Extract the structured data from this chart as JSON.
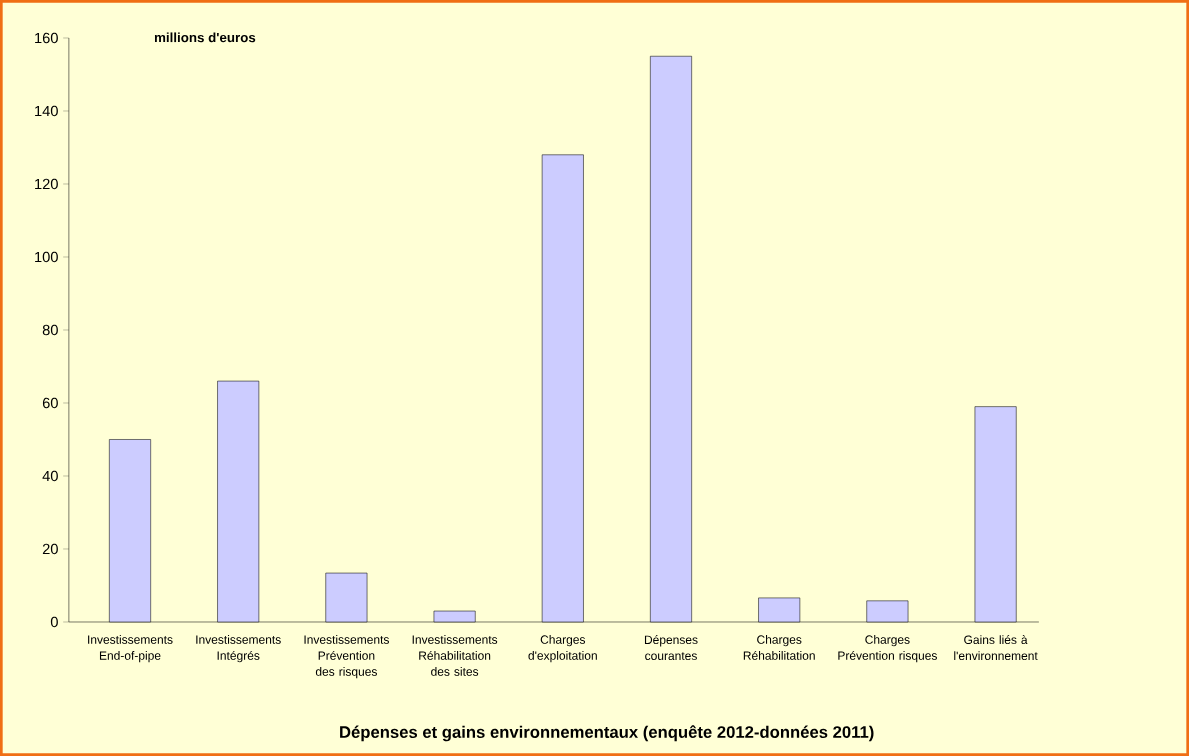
{
  "chart_data": {
    "type": "bar",
    "title": "Dépenses et gains environnementaux (enquête 2012-données 2011)",
    "ylabel": "millions d'euros",
    "categories": [
      "Investissements End-of-pipe",
      "Investissements Intégrés",
      "Investissements Prévention des risques",
      "Investissements Réhabilitation des sites",
      "Charges d'exploitation",
      "Dépenses courantes",
      "Charges Réhabilitation",
      "Charges Prévention risques",
      "Gains liés à l'environnement"
    ],
    "values": [
      50,
      66,
      13.4,
      3,
      128,
      155,
      6.6,
      5.8,
      59
    ],
    "color": "#ccccff",
    "ylim": [
      0,
      160
    ],
    "yticks": [
      0,
      20,
      40,
      60,
      80,
      100,
      120,
      140,
      160
    ]
  }
}
